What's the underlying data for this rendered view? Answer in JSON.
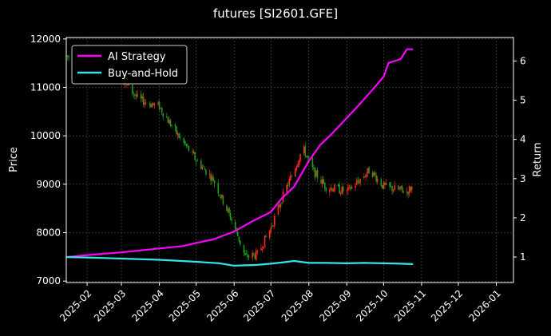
{
  "chart_data": {
    "type": "line",
    "title": "futures [SI2601.GFE]",
    "ylabel": "Price",
    "y2label": "Return",
    "xlim": [
      "2025-01-15",
      "2026-01-15"
    ],
    "ylim": [
      6970,
      12030
    ],
    "y2lim": [
      0.35,
      6.6
    ],
    "x_ticks": [
      "2025-02",
      "2025-03",
      "2025-04",
      "2025-05",
      "2025-06",
      "2025-07",
      "2025-08",
      "2025-09",
      "2025-10",
      "2025-11",
      "2025-12",
      "2026-01"
    ],
    "y_ticks": [
      7000,
      8000,
      9000,
      10000,
      11000,
      12000
    ],
    "y2_ticks": [
      1,
      2,
      3,
      4,
      5,
      6
    ],
    "grid": true,
    "legend_position": "top-left",
    "candle_colors": {
      "up": "#ff2a1a",
      "down": "#1f9b1f"
    },
    "series": [
      {
        "name": "AI Strategy",
        "axis": "right",
        "color": "#ff00ff",
        "x": [
          "2025-01-15",
          "2025-02-01",
          "2025-03-01",
          "2025-04-01",
          "2025-04-20",
          "2025-05-01",
          "2025-05-15",
          "2025-06-01",
          "2025-06-15",
          "2025-07-01",
          "2025-07-10",
          "2025-07-20",
          "2025-08-01",
          "2025-08-10",
          "2025-08-20",
          "2025-09-01",
          "2025-09-10",
          "2025-09-20",
          "2025-10-01",
          "2025-10-05",
          "2025-10-15",
          "2025-10-20",
          "2025-10-25"
        ],
        "values": [
          1.0,
          1.05,
          1.12,
          1.22,
          1.28,
          1.36,
          1.45,
          1.65,
          1.9,
          2.15,
          2.5,
          2.8,
          3.45,
          3.85,
          4.15,
          4.55,
          4.85,
          5.2,
          5.6,
          5.95,
          6.05,
          6.3,
          6.3
        ]
      },
      {
        "name": "Buy-and-Hold",
        "axis": "right",
        "color": "#33e5e5",
        "x": [
          "2025-01-15",
          "2025-02-01",
          "2025-03-01",
          "2025-04-01",
          "2025-05-01",
          "2025-05-20",
          "2025-06-01",
          "2025-06-20",
          "2025-07-01",
          "2025-07-10",
          "2025-07-20",
          "2025-08-01",
          "2025-08-15",
          "2025-09-01",
          "2025-09-15",
          "2025-10-01",
          "2025-10-15",
          "2025-10-25"
        ],
        "values": [
          1.0,
          0.99,
          0.96,
          0.93,
          0.88,
          0.84,
          0.78,
          0.8,
          0.83,
          0.86,
          0.9,
          0.85,
          0.85,
          0.84,
          0.85,
          0.84,
          0.83,
          0.82
        ]
      }
    ],
    "price_path": {
      "x": [
        "2025-01-15",
        "2025-02-01",
        "2025-03-01",
        "2025-03-15",
        "2025-04-01",
        "2025-04-15",
        "2025-05-01",
        "2025-05-15",
        "2025-06-01",
        "2025-06-10",
        "2025-06-20",
        "2025-07-01",
        "2025-07-10",
        "2025-07-20",
        "2025-07-27",
        "2025-08-05",
        "2025-08-15",
        "2025-09-01",
        "2025-09-10",
        "2025-09-20",
        "2025-10-01",
        "2025-10-10",
        "2025-10-20",
        "2025-10-25"
      ],
      "values": [
        11650,
        11450,
        11200,
        10750,
        10600,
        10050,
        9500,
        9100,
        8150,
        7500,
        7550,
        8100,
        8700,
        9300,
        9750,
        9250,
        8950,
        8850,
        9050,
        9300,
        8950,
        8900,
        8850,
        8950
      ]
    }
  }
}
